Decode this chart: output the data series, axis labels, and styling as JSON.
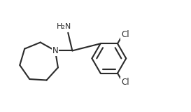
{
  "bg_color": "#ffffff",
  "bond_color": "#2b2b2b",
  "text_color": "#2b2b2b",
  "line_width": 1.5,
  "fig_width": 2.73,
  "fig_height": 1.6,
  "dpi": 100,
  "xlim": [
    0,
    11
  ],
  "ylim": [
    0,
    6.5
  ]
}
